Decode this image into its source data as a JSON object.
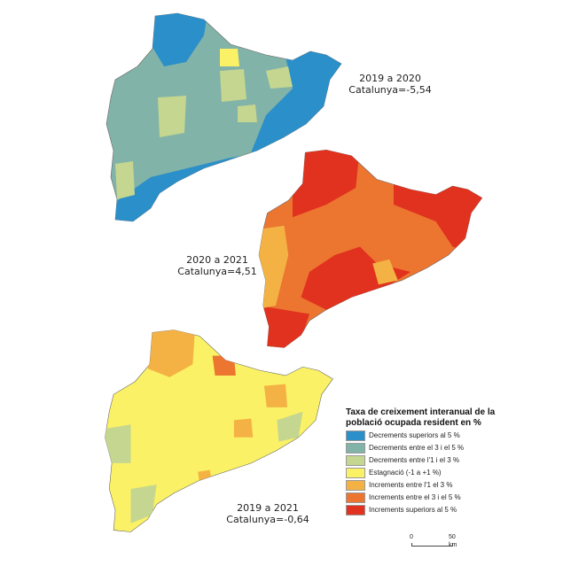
{
  "maps": [
    {
      "period": "2019 a 2020",
      "total": "Catalunya=-5,54",
      "dominant_class": "decrement_3_5"
    },
    {
      "period": "2020 a 2021",
      "total": "Catalunya=4,51",
      "dominant_class": "increment_3_5"
    },
    {
      "period": "2019 a 2021",
      "total": "Catalunya=-0,64",
      "dominant_class": "stagnation"
    }
  ],
  "legend": {
    "title": "Taxa de creixement interanual de la població ocupada resident en %",
    "items": [
      {
        "label": "Decrements superiors al 5 %",
        "color": "#2b8fc9"
      },
      {
        "label": "Decrements entre el 3 i el 5 %",
        "color": "#82b3a8"
      },
      {
        "label": "Decrements entre l'1 i el 3 %",
        "color": "#c4d68f"
      },
      {
        "label": "Estagnació (-1 a +1 %)",
        "color": "#fbf166"
      },
      {
        "label": "Increments entre l'1 el 3 %",
        "color": "#f4b244"
      },
      {
        "label": "Increments entre el 3 i el 5 %",
        "color": "#ec7530"
      },
      {
        "label": "Increments superiors al 5 %",
        "color": "#e0321f"
      }
    ]
  },
  "scale": {
    "start": "0",
    "end": "50 km"
  }
}
